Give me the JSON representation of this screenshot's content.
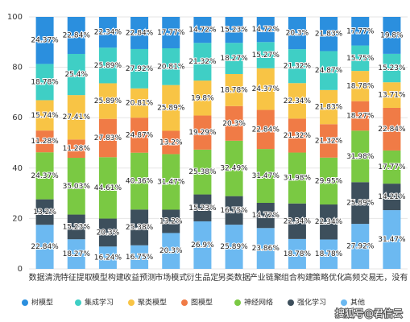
{
  "chart_data": {
    "type": "bar",
    "stacking": "percent",
    "categories": [
      "数据清洗",
      "特征提取",
      "模型构建",
      "收益预测",
      "市场模式",
      "衍生品定",
      "另类数据",
      "产业链聚",
      "组合构建",
      "策略优化",
      "高频交易",
      "无，没有"
    ],
    "series": [
      {
        "name": "树模型",
        "color": "#2b8fde",
        "values": [
          24.37,
          22.84,
          22.34,
          22.84,
          17.77,
          14.72,
          15.23,
          14.72,
          20.3,
          21.83,
          17.77,
          19.8
        ],
        "value_labels": [
          "24.37%",
          "22.84%",
          "22.34%",
          "22.84%",
          "17.77%",
          "14.72%",
          "15.23%",
          "14.72%",
          "20.3%",
          "21.83%",
          "17.77%",
          "19.8%"
        ]
      },
      {
        "name": "集成学习",
        "color": "#3fcfc5",
        "values": [
          18.78,
          25.4,
          25.89,
          27.92,
          20.81,
          21.32,
          18.27,
          15.27,
          21.32,
          24.87,
          15.75,
          15.23
        ],
        "value_labels": [
          "18.78%",
          "25.4%",
          "25.89%",
          "27.92%",
          "20.81%",
          "21.32%",
          "18.27%",
          "15.27%",
          "21.32%",
          "24.87%",
          "15.75%",
          "15.23%"
        ]
      },
      {
        "name": "聚类模型",
        "color": "#f8c445",
        "values": [
          15.74,
          27.41,
          25.89,
          20.81,
          25.89,
          19.8,
          18.78,
          24.37,
          22.34,
          21.83,
          18.78,
          13.71
        ],
        "value_labels": [
          "15.74%",
          "27.41%",
          "25.89%",
          "20.81%",
          "25.89%",
          "19.8%",
          "18.78%",
          "24.37%",
          "22.34%",
          "21.83%",
          "18.78%",
          "13.71%"
        ]
      },
      {
        "name": "图模型",
        "color": "#f07b46",
        "values": [
          11.28,
          11.28,
          27.83,
          24.87,
          13.2,
          19.29,
          20.3,
          22.84,
          21.32,
          21.32,
          18.27,
          22.84
        ],
        "value_labels": [
          "11.28%",
          "11.28%",
          "27.83%",
          "24.87%",
          "13.2%",
          "19.29%",
          "20.3%",
          "22.84%",
          "21.32%",
          "21.32%",
          "18.27%",
          "22.84%"
        ]
      },
      {
        "name": "神经网络",
        "color": "#7ac943",
        "values": [
          24.37,
          35.03,
          44.61,
          40.36,
          31.47,
          25.38,
          32.49,
          31.47,
          31.98,
          29.95,
          31.98,
          17.77
        ],
        "value_labels": [
          "24.37%",
          "35.03%",
          "44.61%",
          "40.36%",
          "31.47%",
          "25.38%",
          "32.49%",
          "31.47%",
          "31.98%",
          "29.95%",
          "31.98%",
          "17.77%"
        ]
      },
      {
        "name": "强化学习",
        "color": "#3d4f5c",
        "values": [
          13.2,
          15.23,
          20.3,
          25.38,
          13.2,
          15.23,
          16.75,
          14.72,
          22.34,
          22.34,
          25.89,
          14.21
        ],
        "value_labels": [
          "13.2%",
          "15.23%",
          "20.3%",
          "25.38%",
          "13.2%",
          "15.23%",
          "16.75%",
          "14.72%",
          "22.34%",
          "22.34%",
          "25.89%",
          "14.21%"
        ]
      },
      {
        "name": "其他",
        "color": "#6cb9f1",
        "values": [
          22.84,
          18.27,
          16.24,
          16.75,
          20.3,
          26.9,
          25.89,
          23.86,
          18.78,
          18.78,
          27.92,
          31.47
        ],
        "value_labels": [
          "22.84%",
          "18.27%",
          "16.24%",
          "16.75%",
          "20.3%",
          "26.9%",
          "25.89%",
          "23.86%",
          "18.78%",
          "18.78%",
          "27.92%",
          "31.47%"
        ]
      }
    ],
    "ylim": [
      0,
      100
    ],
    "yticks": [
      0,
      20,
      40,
      60,
      80,
      100
    ],
    "grid": true,
    "legend": "bottom",
    "watermark": "搜狐号@君信云"
  }
}
